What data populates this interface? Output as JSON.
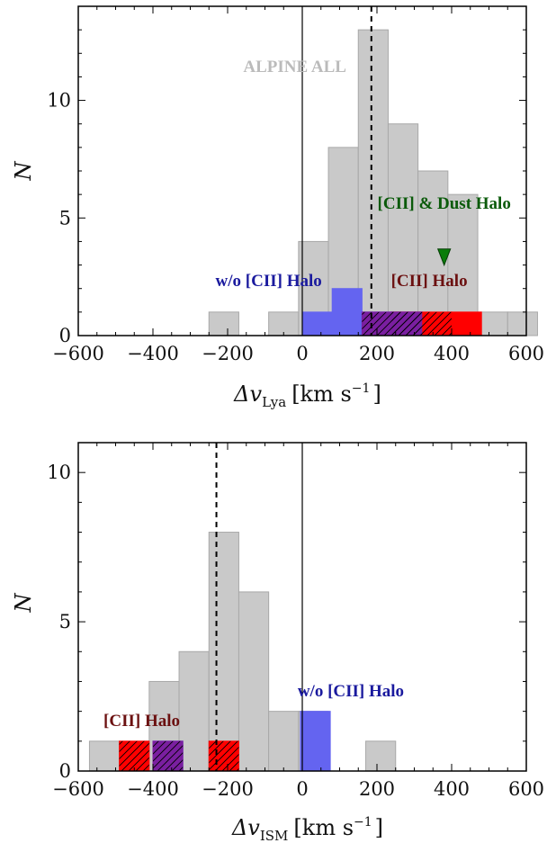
{
  "colors": {
    "all": "#c9c9c9",
    "all_edge": "#a8a8a8",
    "noHalo": "#6464f0",
    "halo": "#ff0000",
    "mixed": "#7a1fa0",
    "dust": "#0a7d0a",
    "annotation_all": "#bbbbbb",
    "annotation_noHalo": "#1a1a9e",
    "annotation_halo": "#6b1010",
    "annotation_dust": "#0a5a0a"
  },
  "chart_data": [
    {
      "type": "bar",
      "title": "",
      "xlabel": "Δv_Lya [km s⁻¹]",
      "xlabel_main": "Δv",
      "xlabel_sub": "Lya",
      "xlabel_units": "[km s",
      "xlabel_exp": "−1",
      "xlabel_close": "]",
      "ylabel": "N",
      "xlim": [
        -600,
        600
      ],
      "ylim": [
        0,
        14
      ],
      "xticks": [
        -600,
        -400,
        -200,
        0,
        200,
        400,
        600
      ],
      "xtick_labels": [
        "−600",
        "−400",
        "−200",
        "0",
        "200",
        "400",
        "600"
      ],
      "yticks": [
        0,
        5,
        10
      ],
      "ytick_labels": [
        "0",
        "5",
        "10"
      ],
      "zero_line": 0,
      "median_line": 185,
      "bin_width": 80,
      "all": {
        "label": "ALPINE ALL",
        "bins": [
          {
            "x": -250,
            "n": 1
          },
          {
            "x": -90,
            "n": 1
          },
          {
            "x": -10,
            "n": 4
          },
          {
            "x": 70,
            "n": 8
          },
          {
            "x": 150,
            "n": 13
          },
          {
            "x": 230,
            "n": 9
          },
          {
            "x": 310,
            "n": 7
          },
          {
            "x": 390,
            "n": 6
          },
          {
            "x": 470,
            "n": 1
          },
          {
            "x": 550,
            "n": 1
          }
        ]
      },
      "noHalo": {
        "label": "w/o [CII] Halo",
        "bins": [
          {
            "x": 0,
            "n": 1
          },
          {
            "x": 80,
            "n": 2
          },
          {
            "x": 160,
            "n": 1
          },
          {
            "x": 240,
            "n": 1
          }
        ]
      },
      "mixed": {
        "bins": [
          {
            "x": 160,
            "n": 1
          },
          {
            "x": 240,
            "n": 1
          }
        ]
      },
      "halo": {
        "label": "[CII] Halo",
        "bins": [
          {
            "x": 240,
            "n": 1
          },
          {
            "x": 320,
            "n": 1
          },
          {
            "x": 400,
            "n": 1
          }
        ]
      },
      "dust": {
        "label": "[CII] & Dust Halo",
        "marker_x": 380,
        "marker_n": 3.3
      },
      "annotation_pos": {
        "all": [
          -20,
          11.2
        ],
        "noHalo": [
          -90,
          2.1
        ],
        "halo": [
          340,
          2.1
        ],
        "dust": [
          380,
          5.4
        ]
      }
    },
    {
      "type": "bar",
      "title": "",
      "xlabel": "Δv_ISM [km s⁻¹]",
      "xlabel_main": "Δv",
      "xlabel_sub": "ISM",
      "xlabel_units": "[km s",
      "xlabel_exp": "−1",
      "xlabel_close": "]",
      "ylabel": "N",
      "xlim": [
        -600,
        600
      ],
      "ylim": [
        0,
        11
      ],
      "xticks": [
        -600,
        -400,
        -200,
        0,
        200,
        400,
        600
      ],
      "xtick_labels": [
        "−600",
        "−400",
        "−200",
        "0",
        "200",
        "400",
        "600"
      ],
      "yticks": [
        0,
        5,
        10
      ],
      "ytick_labels": [
        "0",
        "5",
        "10"
      ],
      "zero_line": 0,
      "median_line": -230,
      "bin_width": 80,
      "all": {
        "bins": [
          {
            "x": -570,
            "n": 1
          },
          {
            "x": -490,
            "n": 1
          },
          {
            "x": -410,
            "n": 3
          },
          {
            "x": -330,
            "n": 4
          },
          {
            "x": -250,
            "n": 8
          },
          {
            "x": -170,
            "n": 6
          },
          {
            "x": -90,
            "n": 2
          },
          {
            "x": -10,
            "n": 2
          },
          {
            "x": 170,
            "n": 1
          }
        ]
      },
      "noHalo": {
        "label": "w/o [CII] Halo",
        "bins": [
          {
            "x": -400,
            "n": 1
          },
          {
            "x": -5,
            "n": 2
          }
        ]
      },
      "mixed": {
        "bins": [
          {
            "x": -400,
            "n": 1
          }
        ]
      },
      "halo": {
        "label": "[CII] Halo",
        "bins": [
          {
            "x": -490,
            "n": 1
          },
          {
            "x": -250,
            "n": 1
          }
        ]
      },
      "annotation_pos": {
        "noHalo": [
          130,
          2.5
        ],
        "halo": [
          -430,
          1.5
        ]
      }
    }
  ]
}
